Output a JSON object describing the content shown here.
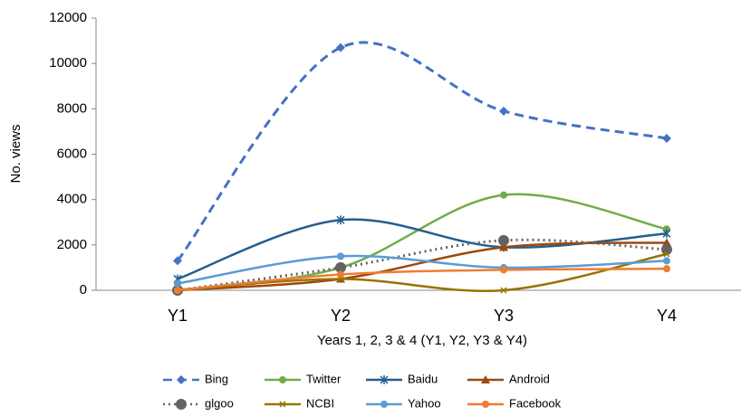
{
  "chart_data": {
    "type": "line",
    "y_label": "No. views",
    "x_label": "Years 1, 2, 3 & 4 (Y1, Y2, Y3 & Y4)",
    "categories": [
      "Y1",
      "Y2",
      "Y3",
      "Y4"
    ],
    "ylim": [
      0,
      12000
    ],
    "yticks": [
      0,
      2000,
      4000,
      6000,
      8000,
      10000,
      12000
    ],
    "smooth": true,
    "legend": "bottom",
    "series": [
      {
        "name": "Bing",
        "color": "#4472c4",
        "marker": "diamond",
        "line_style": "dashed",
        "values": [
          1300,
          10700,
          7900,
          6700
        ]
      },
      {
        "name": "Twitter",
        "color": "#70ad47",
        "marker": "circle",
        "line_style": "solid",
        "values": [
          0,
          1000,
          4200,
          2700
        ]
      },
      {
        "name": "Baidu",
        "color": "#255e91",
        "marker": "star",
        "line_style": "solid",
        "values": [
          500,
          3100,
          1900,
          2500
        ]
      },
      {
        "name": "Android",
        "color": "#9e480e",
        "marker": "triangle",
        "line_style": "solid",
        "values": [
          0,
          500,
          1900,
          2100
        ]
      },
      {
        "name": "glgoo",
        "color": "#636363",
        "marker": "circle",
        "line_style": "dotted",
        "values": [
          0,
          1000,
          2200,
          1800
        ]
      },
      {
        "name": "NCBI",
        "color": "#997300",
        "marker": "x",
        "line_style": "solid",
        "values": [
          0,
          500,
          0,
          1600
        ]
      },
      {
        "name": "Yahoo",
        "color": "#5b9bd5",
        "marker": "circle",
        "line_style": "solid",
        "values": [
          300,
          1500,
          1000,
          1300
        ]
      },
      {
        "name": "Facebook",
        "color": "#ed7d31",
        "marker": "circle",
        "line_style": "solid",
        "values": [
          0,
          700,
          900,
          950
        ]
      }
    ]
  }
}
